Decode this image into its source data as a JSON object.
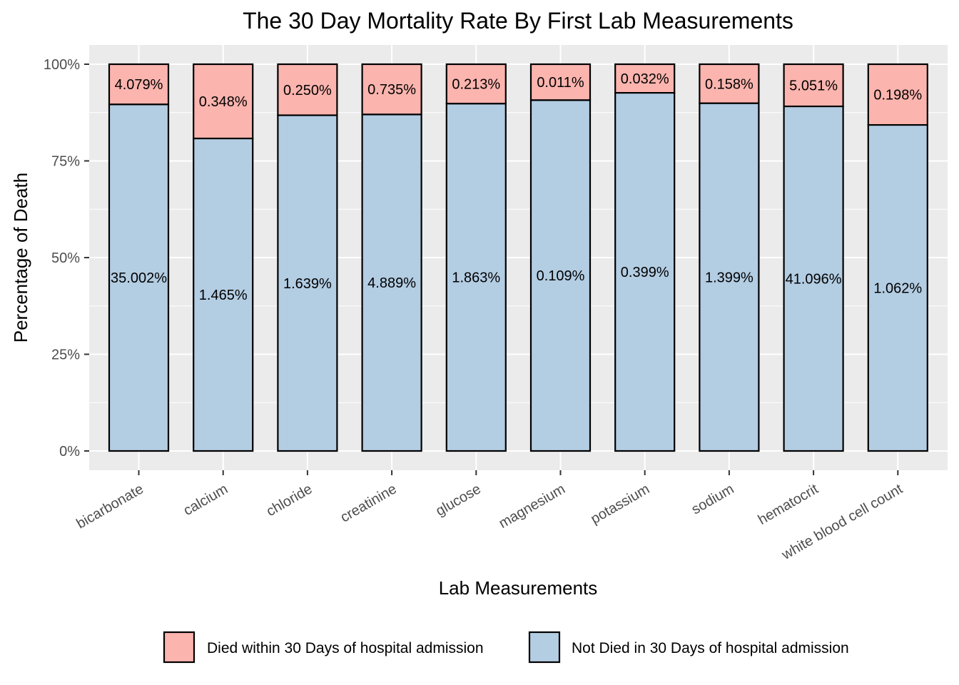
{
  "chart_data": {
    "type": "bar",
    "stacked": true,
    "title": "The 30 Day Mortality Rate By First Lab Measurements",
    "xlabel": "Lab Measurements",
    "ylabel": "Percentage of Death",
    "ylim": [
      0,
      100
    ],
    "y_ticks": [
      "0%",
      "25%",
      "50%",
      "75%",
      "100%"
    ],
    "grid": true,
    "legend_position": "bottom",
    "categories": [
      "bicarbonate",
      "calcium",
      "chloride",
      "creatinine",
      "glucose",
      "magnesium",
      "potassium",
      "sodium",
      "hematocrit",
      "white blood cell count"
    ],
    "series": [
      {
        "name": "Not Died in 30 Days of hospital admission",
        "color": "#b3cde3",
        "values": [
          89.6,
          80.8,
          86.8,
          87.0,
          89.8,
          90.7,
          92.6,
          89.9,
          89.1,
          84.3
        ],
        "labels": [
          "35.002%",
          "1.465%",
          "1.639%",
          "4.889%",
          "1.863%",
          "0.109%",
          "0.399%",
          "1.399%",
          "41.096%",
          "1.062%"
        ]
      },
      {
        "name": "Died within 30 Days of hospital admission",
        "color": "#fbb4ae",
        "values": [
          10.4,
          19.2,
          13.2,
          13.0,
          10.2,
          9.3,
          7.4,
          10.1,
          10.9,
          15.7
        ],
        "labels": [
          "4.079%",
          "0.348%",
          "0.250%",
          "0.735%",
          "0.213%",
          "0.011%",
          "0.032%",
          "0.158%",
          "5.051%",
          "0.198%"
        ]
      }
    ],
    "legend": [
      {
        "name": "Died within 30 Days of hospital admission",
        "color": "#fbb4ae"
      },
      {
        "name": "Not Died in 30 Days of hospital admission",
        "color": "#b3cde3"
      }
    ]
  }
}
